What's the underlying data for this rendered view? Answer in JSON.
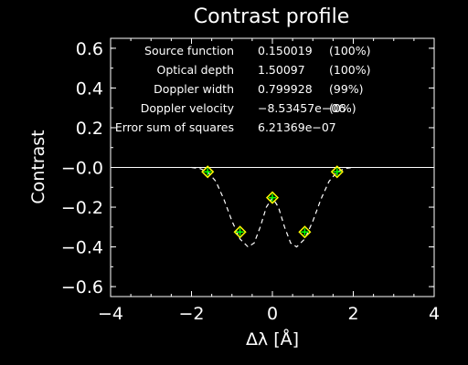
{
  "chart_data": {
    "type": "scatter",
    "title": "Contrast profile",
    "xlabel": "Δλ [Å]",
    "ylabel": "Contrast",
    "xlim": [
      -4,
      4
    ],
    "ylim": [
      -0.65,
      0.65
    ],
    "x_ticks": [
      -4,
      -2,
      0,
      2,
      4
    ],
    "x_tick_labels": [
      "−4",
      "−2",
      "0",
      "2",
      "4"
    ],
    "y_ticks": [
      0.6,
      0.4,
      0.2,
      0.0,
      -0.2,
      -0.4,
      -0.6
    ],
    "y_tick_labels": [
      "0.6",
      "0.4",
      "0.2",
      "−0.0",
      "−0.2",
      "−0.4",
      "−0.6"
    ],
    "zero_line": 0.0,
    "points": [
      {
        "x": -1.6,
        "y": -0.022
      },
      {
        "x": -0.8,
        "y": -0.325
      },
      {
        "x": 0.0,
        "y": -0.152
      },
      {
        "x": 0.8,
        "y": -0.325
      },
      {
        "x": 1.6,
        "y": -0.022
      }
    ],
    "fit_curve": [
      {
        "x": -2.0,
        "y": 0.0
      },
      {
        "x": -1.8,
        "y": -0.005
      },
      {
        "x": -1.6,
        "y": -0.022
      },
      {
        "x": -1.4,
        "y": -0.07
      },
      {
        "x": -1.2,
        "y": -0.16
      },
      {
        "x": -1.0,
        "y": -0.27
      },
      {
        "x": -0.8,
        "y": -0.36
      },
      {
        "x": -0.6,
        "y": -0.4
      },
      {
        "x": -0.45,
        "y": -0.38
      },
      {
        "x": -0.3,
        "y": -0.3
      },
      {
        "x": -0.15,
        "y": -0.2
      },
      {
        "x": 0.0,
        "y": -0.152
      },
      {
        "x": 0.15,
        "y": -0.2
      },
      {
        "x": 0.3,
        "y": -0.3
      },
      {
        "x": 0.45,
        "y": -0.38
      },
      {
        "x": 0.6,
        "y": -0.4
      },
      {
        "x": 0.8,
        "y": -0.36
      },
      {
        "x": 1.0,
        "y": -0.27
      },
      {
        "x": 1.2,
        "y": -0.16
      },
      {
        "x": 1.4,
        "y": -0.07
      },
      {
        "x": 1.6,
        "y": -0.022
      },
      {
        "x": 1.8,
        "y": -0.005
      },
      {
        "x": 2.0,
        "y": 0.0
      }
    ],
    "fit_results": [
      {
        "label": "Source function",
        "value": "0.150019",
        "percent": "(100%)"
      },
      {
        "label": "Optical depth",
        "value": "1.50097",
        "percent": "(100%)"
      },
      {
        "label": "Doppler width",
        "value": "0.799928",
        "percent": "(99%)"
      },
      {
        "label": "Doppler velocity",
        "value": "−8.53457e−06",
        "percent": "(0%)"
      },
      {
        "label": "Error sum of squares",
        "value": "6.21369e−07",
        "percent": ""
      }
    ],
    "colors": {
      "background": "#000000",
      "axes": "#ffffff",
      "fit_line": "#ffffff",
      "marker_fill": "#ffff00",
      "marker_outline": "#00ff00"
    }
  }
}
